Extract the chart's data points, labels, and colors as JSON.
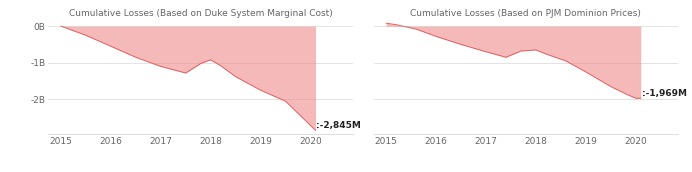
{
  "chart1": {
    "title": "Cumulative Losses (Based on Duke System Marginal Cost)",
    "x": [
      2015,
      2015.5,
      2016,
      2016.5,
      2017,
      2017.5,
      2017.8,
      2018,
      2018.2,
      2018.5,
      2019,
      2019.5,
      2019.9,
      2020.1
    ],
    "y": [
      0,
      -250,
      -550,
      -850,
      -1100,
      -1280,
      -1020,
      -920,
      -1080,
      -1380,
      -1750,
      -2050,
      -2580,
      -2845
    ],
    "annotation": ":-2,845M",
    "ann_x": 2020.12,
    "ann_y": -2720,
    "ylim": [
      -2950,
      150
    ],
    "yticks": [
      0,
      -1000,
      -2000
    ],
    "ytick_labels": [
      "0B",
      "-1B",
      "-2B"
    ]
  },
  "chart2": {
    "title": "Cumulative Losses (Based on PJM Dominion Prices)",
    "x": [
      2015,
      2015.2,
      2015.6,
      2016,
      2016.5,
      2017,
      2017.4,
      2017.7,
      2018.0,
      2018.2,
      2018.6,
      2019,
      2019.5,
      2019.8,
      2020.0,
      2020.1
    ],
    "y": [
      80,
      40,
      -80,
      -280,
      -500,
      -700,
      -850,
      -680,
      -650,
      -760,
      -950,
      -1250,
      -1650,
      -1850,
      -1969,
      -1969
    ],
    "annotation": ":-1,969M",
    "ann_x": 2020.12,
    "ann_y": -1850,
    "ylim": [
      -2950,
      150
    ],
    "yticks": [
      0,
      -1000,
      -2000
    ],
    "ytick_labels": [
      "0B",
      "-1B",
      "-2B"
    ]
  },
  "fill_color": "#f08080",
  "fill_alpha": 0.55,
  "line_color": "#e06060",
  "bg_color": "#ffffff",
  "grid_color": "#d8d8d8",
  "text_color": "#666666",
  "annotation_color": "#222222",
  "xlim": [
    2014.75,
    2020.85
  ],
  "xticks": [
    2015,
    2016,
    2017,
    2018,
    2019,
    2020
  ],
  "xtick_labels": [
    "2015",
    "2016",
    "2017",
    "2018",
    "2019",
    "2020"
  ]
}
